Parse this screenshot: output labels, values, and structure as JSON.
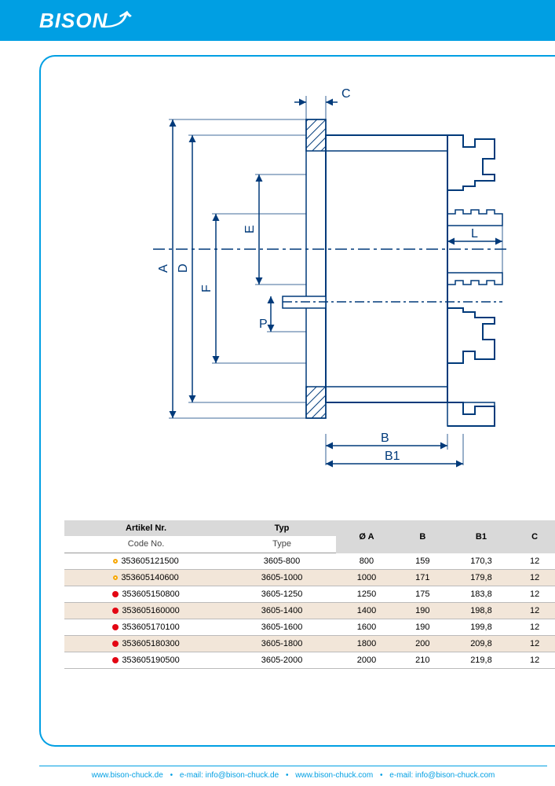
{
  "brand": "BISON",
  "diagram": {
    "stroke": "#003a7a",
    "hatch": "#003a7a",
    "labels": {
      "A": "A",
      "D": "D",
      "F": "F",
      "E": "E",
      "P": "P",
      "C": "C",
      "B": "B",
      "B1": "B1",
      "L": "L"
    }
  },
  "table": {
    "headers1": [
      "Artikel Nr.",
      "Typ",
      "Ø A",
      "B",
      "B1",
      "C"
    ],
    "headers2": [
      "Code No.",
      "Type"
    ],
    "rows": [
      {
        "status": "orange",
        "code": "353605121500",
        "type": "3605-800",
        "a": "800",
        "b": "159",
        "b1": "170,3",
        "c": "12",
        "alt": false
      },
      {
        "status": "orange",
        "code": "353605140600",
        "type": "3605-1000",
        "a": "1000",
        "b": "171",
        "b1": "179,8",
        "c": "12",
        "alt": true
      },
      {
        "status": "red",
        "code": "353605150800",
        "type": "3605-1250",
        "a": "1250",
        "b": "175",
        "b1": "183,8",
        "c": "12",
        "alt": false
      },
      {
        "status": "red",
        "code": "353605160000",
        "type": "3605-1400",
        "a": "1400",
        "b": "190",
        "b1": "198,8",
        "c": "12",
        "alt": true
      },
      {
        "status": "red",
        "code": "353605170100",
        "type": "3605-1600",
        "a": "1600",
        "b": "190",
        "b1": "199,8",
        "c": "12",
        "alt": false
      },
      {
        "status": "red",
        "code": "353605180300",
        "type": "3605-1800",
        "a": "1800",
        "b": "200",
        "b1": "209,8",
        "c": "12",
        "alt": true
      },
      {
        "status": "red",
        "code": "353605190500",
        "type": "3605-2000",
        "a": "2000",
        "b": "210",
        "b1": "219,8",
        "c": "12",
        "alt": false
      }
    ]
  },
  "footer": {
    "items": [
      "www.bison-chuck.de",
      "e-mail: info@bison-chuck.de",
      "www.bison-chuck.com",
      "e-mail: info@bison-chuck.com"
    ],
    "sep": "•"
  }
}
